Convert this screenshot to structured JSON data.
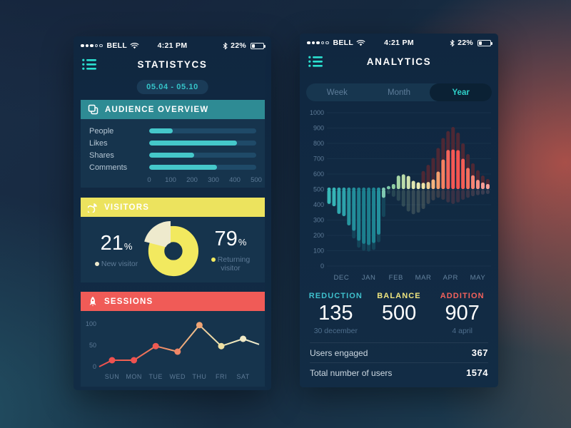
{
  "status": {
    "carrier": "BELL",
    "time": "4:21 PM",
    "battery": "22%"
  },
  "left_phone": {
    "title": "STATISTYCS",
    "date_range": "05.04 - 05.10",
    "cards": {
      "audience": {
        "title": "AUDIENCE OVERVIEW"
      },
      "visitors": {
        "title": "VISITORS",
        "new_pct": "21",
        "new_label": "New visitor",
        "returning_pct": "79",
        "returning_label": "Returning visitor"
      },
      "sessions": {
        "title": "SESSIONS"
      }
    }
  },
  "right_phone": {
    "title": "ANALYTICS",
    "tabs": [
      "Week",
      "Month",
      "Year"
    ],
    "active_tab": "Year",
    "stats": [
      {
        "label": "REDUCTION",
        "value": "135",
        "sub": "30 december",
        "color": "#3fc0cd"
      },
      {
        "label": "BALANCE",
        "value": "500",
        "sub": "",
        "color": "#efe57f"
      },
      {
        "label": "ADDITION",
        "value": "907",
        "sub": "4 april",
        "color": "#f4625c"
      }
    ],
    "totals": [
      {
        "label": "Users engaged",
        "value": "367"
      },
      {
        "label": "Total number of users",
        "value": "1574"
      }
    ]
  },
  "chart_data": [
    {
      "id": "audience",
      "type": "bar",
      "orientation": "horizontal",
      "categories": [
        "People",
        "Likes",
        "Shares",
        "Comments"
      ],
      "values": [
        110,
        410,
        210,
        315
      ],
      "xlim": [
        0,
        500
      ],
      "ticks": [
        0,
        100,
        200,
        300,
        400,
        500
      ],
      "bar_color": "#45c8ca",
      "track_color": "#1f4a68"
    },
    {
      "id": "visitors",
      "type": "pie",
      "slices": [
        {
          "label": "New visitor",
          "pct": 21,
          "color": "#eeeacd"
        },
        {
          "label": "Returning visitor",
          "pct": 79,
          "color": "#f2e95f"
        }
      ]
    },
    {
      "id": "sessions",
      "type": "line",
      "categories": [
        "SUN",
        "MON",
        "TUE",
        "WED",
        "THU",
        "FRI",
        "SAT"
      ],
      "values": [
        15,
        15,
        48,
        35,
        97,
        48,
        65
      ],
      "edge_start": 0,
      "edge_end": 52,
      "ylim": [
        0,
        100
      ],
      "yticks": [
        0,
        50,
        100
      ],
      "point_colors": [
        "#ef5250",
        "#ef5250",
        "#ef5a52",
        "#f08666",
        "#f0a474",
        "#efe0a2",
        "#efe9c6"
      ],
      "line_gradient": [
        "#ef4f4d",
        "#ef6a55",
        "#f0a474",
        "#efe5b2",
        "#efeccf"
      ]
    },
    {
      "id": "analytics",
      "type": "waveform-bar",
      "months": [
        "DEC",
        "JAN",
        "FEB",
        "MAR",
        "APR",
        "MAY"
      ],
      "month_center_cols": [
        2.5,
        8,
        13.5,
        19,
        24.5,
        30
      ],
      "ylim": [
        0,
        1000
      ],
      "yticks": [
        0,
        100,
        200,
        300,
        400,
        500,
        600,
        700,
        800,
        900,
        1000
      ],
      "baseline": 500,
      "min_point": {
        "value": 135,
        "date": "30 december"
      },
      "max_point": {
        "value": 907,
        "date": "4 april"
      },
      "columns": [
        [
          405,
          null,
          512,
          "#38b8b8"
        ],
        [
          390,
          null,
          512,
          "#36b4b6"
        ],
        [
          340,
          null,
          512,
          "#30a9b0"
        ],
        [
          325,
          null,
          512,
          "#2da2ab"
        ],
        [
          265,
          null,
          512,
          "#27959f"
        ],
        [
          230,
          180,
          512,
          "#238e9b"
        ],
        [
          165,
          120,
          512,
          "#1e8492"
        ],
        [
          145,
          100,
          512,
          "#1c7f8e"
        ],
        [
          137,
          95,
          512,
          "#1c7f8e"
        ],
        [
          150,
          105,
          512,
          "#1e8492"
        ],
        [
          205,
          155,
          512,
          "#23909d"
        ],
        [
          445,
          320,
          512,
          "#7fc8b2"
        ],
        [
          522,
          null,
          470,
          "#79c6a6"
        ],
        [
          535,
          null,
          452,
          "#8ecda2"
        ],
        [
          590,
          null,
          425,
          "#a5d5a5"
        ],
        [
          598,
          null,
          388,
          "#badcaa"
        ],
        [
          588,
          null,
          356,
          "#cfe2ae"
        ],
        [
          556,
          null,
          338,
          "#e0e6b0"
        ],
        [
          546,
          null,
          348,
          "#eae9b2"
        ],
        [
          543,
          620,
          372,
          "#efe3a6"
        ],
        [
          548,
          660,
          405,
          "#f2cf95"
        ],
        [
          565,
          705,
          428,
          "#f4b37e"
        ],
        [
          616,
          770,
          445,
          "#f59e6d"
        ],
        [
          695,
          835,
          432,
          "#f58161"
        ],
        [
          757,
          880,
          415,
          "#f4655a"
        ],
        [
          760,
          907,
          405,
          "#f45854"
        ],
        [
          756,
          870,
          415,
          "#f45450"
        ],
        [
          700,
          800,
          432,
          "#f45d55"
        ],
        [
          640,
          730,
          445,
          "#f4705f"
        ],
        [
          592,
          670,
          455,
          "#f58373"
        ],
        [
          562,
          625,
          462,
          "#f69186"
        ],
        [
          545,
          590,
          466,
          "#f79c94"
        ],
        [
          535,
          568,
          470,
          "#f8a39c"
        ]
      ]
    }
  ]
}
